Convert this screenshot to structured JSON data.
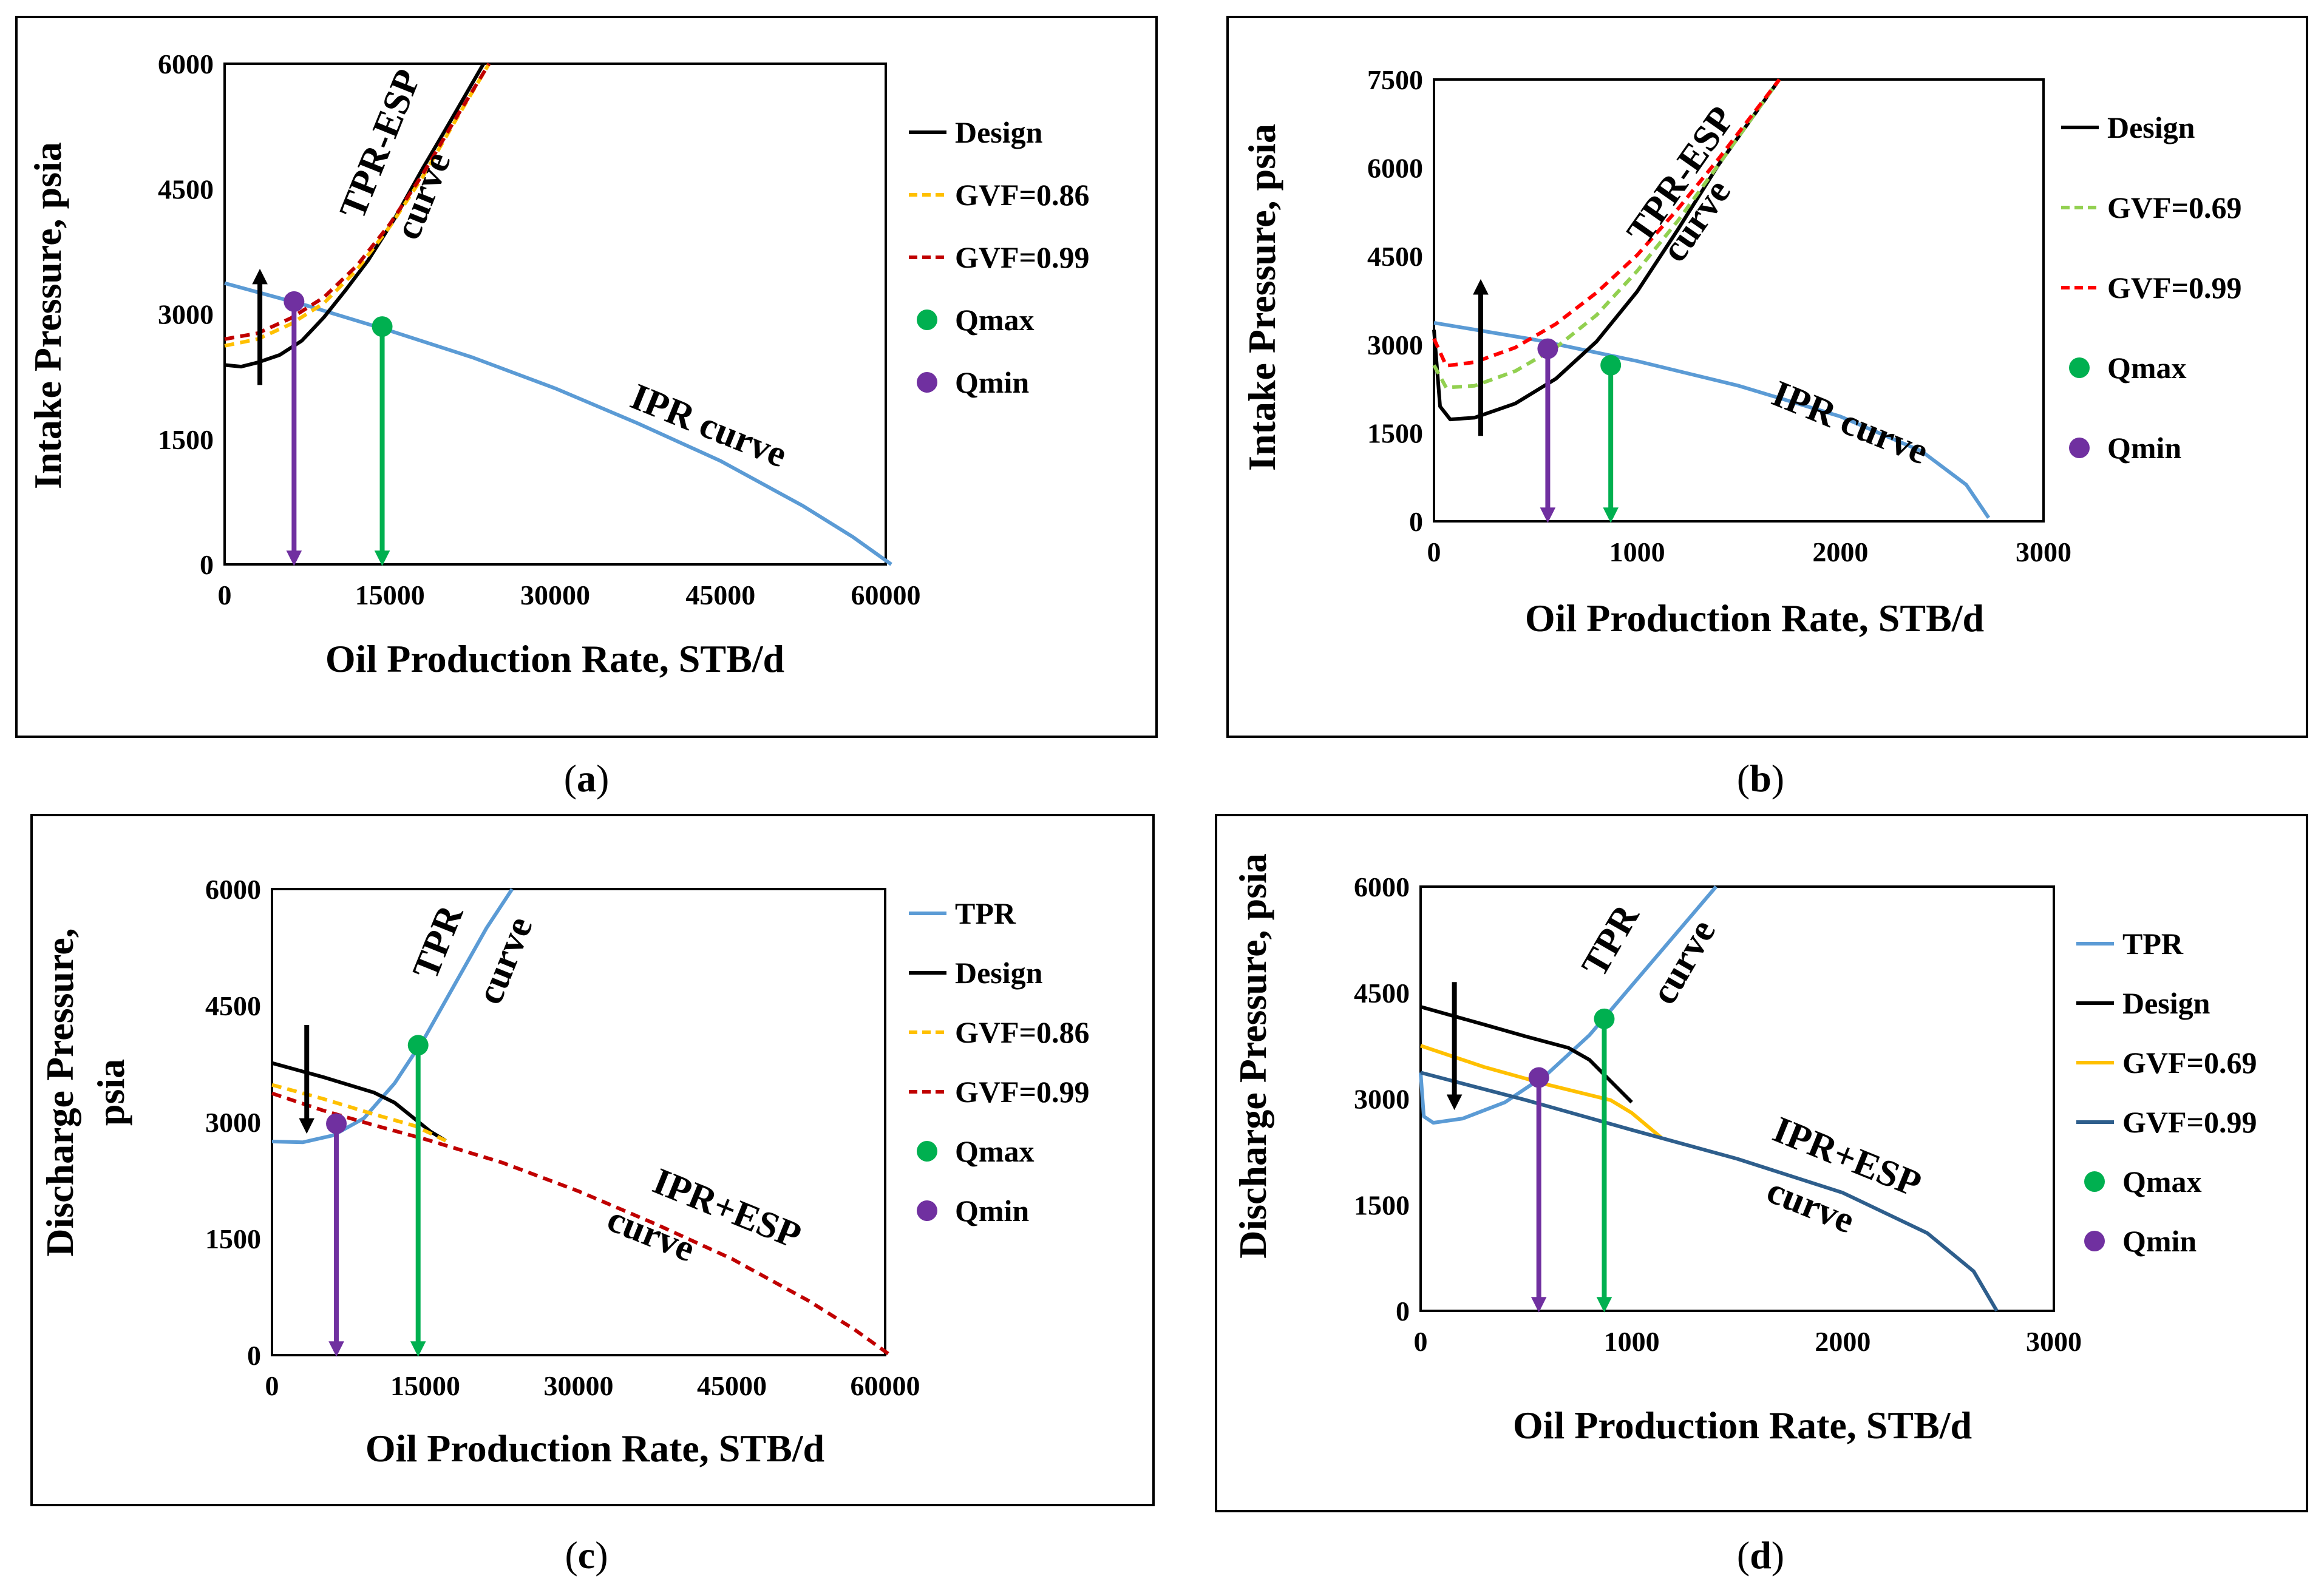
{
  "colors": {
    "design": "#000000",
    "gvf_a": "#ffc000",
    "gvf_b": "#92d050",
    "gvf_red": "#c00000",
    "gvf_red_b": "#ff0000",
    "tpr": "#5b9bd5",
    "ipr": "#5b9bd5",
    "gvf_d2": "#2e5e8c",
    "qmax": "#00b050",
    "qmin": "#7030a0"
  },
  "captions": {
    "a": {
      "open": "(",
      "letter": "a",
      "close": ")"
    },
    "b": {
      "open": "(",
      "letter": "b",
      "close": ")"
    },
    "c": {
      "open": "(",
      "letter": "c",
      "close": ")"
    },
    "d": {
      "open": "(",
      "letter": "d",
      "close": ")"
    }
  },
  "chart_data": [
    {
      "id": "a",
      "type": "line",
      "xlabel": "Oil Production Rate, STB/d",
      "ylabel": "Intake Pressure, psia",
      "xlim": [
        0,
        60000
      ],
      "ylim": [
        0,
        6000
      ],
      "xticks": [
        "0",
        "15000",
        "30000",
        "45000",
        "60000"
      ],
      "yticks": [
        "0",
        "1500",
        "3000",
        "4500",
        "6000"
      ],
      "legend": [
        "Design",
        "GVF=0.86",
        "GVF=0.99",
        "Qmax",
        "Qmin"
      ],
      "annotations": [
        "TPR-ESP",
        "curve",
        "IPR curve"
      ],
      "series": [
        {
          "name": "IPR curve",
          "x": [
            0,
            7500,
            15000,
            22500,
            30000,
            37500,
            45000,
            52500,
            57000,
            60500
          ],
          "y": [
            3370,
            3100,
            2800,
            2480,
            2110,
            1690,
            1240,
            700,
            330,
            0
          ]
        },
        {
          "name": "Design",
          "x": [
            0,
            1500,
            3000,
            5000,
            7000,
            9000,
            11000,
            13000,
            15500,
            18000,
            20000,
            23500
          ],
          "y": [
            2390,
            2370,
            2420,
            2510,
            2680,
            2960,
            3290,
            3640,
            4160,
            4750,
            5200,
            6000
          ]
        },
        {
          "name": "GVF=0.86",
          "x": [
            0,
            3000,
            6000,
            9000,
            12000,
            15000,
            18000,
            21000,
            24000
          ],
          "y": [
            2620,
            2700,
            2880,
            3130,
            3530,
            4050,
            4650,
            5330,
            6000
          ]
        },
        {
          "name": "GVF=0.99",
          "x": [
            0,
            3000,
            6000,
            9000,
            12000,
            15000,
            18000,
            21000,
            24000
          ],
          "y": [
            2700,
            2770,
            2950,
            3200,
            3580,
            4080,
            4680,
            5350,
            6000
          ]
        }
      ],
      "points": [
        {
          "name": "Qmin",
          "x": 6300,
          "y": 3150
        },
        {
          "name": "Qmax",
          "x": 14300,
          "y": 2850
        }
      ],
      "qmin_rate": 6300,
      "qmax_rate": 14300,
      "shift_arrow": {
        "x": 3200,
        "from": 2150,
        "to": 3450,
        "direction": "up"
      }
    },
    {
      "id": "b",
      "type": "line",
      "xlabel": "Oil Production Rate, STB/d",
      "ylabel": "Intake Pressure, psia",
      "xlim": [
        0,
        3000
      ],
      "ylim": [
        0,
        7500
      ],
      "xticks": [
        "0",
        "1000",
        "2000",
        "3000"
      ],
      "yticks": [
        "0",
        "1500",
        "3000",
        "4500",
        "6000",
        "7500"
      ],
      "legend": [
        "Design",
        "GVF=0.69",
        "GVF=0.99",
        "Qmax",
        "Qmin"
      ],
      "annotations": [
        "TPR-ESP",
        "curve",
        "IPR curve"
      ],
      "series": [
        {
          "name": "IPR curve",
          "x": [
            0,
            500,
            1000,
            1500,
            2000,
            2400,
            2620,
            2730
          ],
          "y": [
            3370,
            3080,
            2720,
            2300,
            1780,
            1190,
            620,
            60
          ]
        },
        {
          "name": "Design",
          "x": [
            0,
            30,
            80,
            200,
            400,
            600,
            800,
            1000,
            1200,
            1400,
            1700
          ],
          "y": [
            3250,
            1950,
            1730,
            1760,
            2000,
            2420,
            3050,
            3900,
            4950,
            6050,
            7500
          ]
        },
        {
          "name": "GVF=0.69",
          "x": [
            0,
            60,
            200,
            400,
            600,
            800,
            1000,
            1200,
            1400,
            1700
          ],
          "y": [
            2650,
            2270,
            2300,
            2550,
            2950,
            3500,
            4250,
            5100,
            6050,
            7500
          ]
        },
        {
          "name": "GVF=0.99",
          "x": [
            0,
            60,
            200,
            400,
            600,
            800,
            1000,
            1200,
            1400,
            1700
          ],
          "y": [
            3100,
            2640,
            2700,
            2950,
            3350,
            3880,
            4520,
            5300,
            6150,
            7500
          ]
        }
      ],
      "points": [
        {
          "name": "Qmin",
          "x": 560,
          "y": 2930
        },
        {
          "name": "Qmax",
          "x": 870,
          "y": 2650
        }
      ],
      "qmin_rate": 560,
      "qmax_rate": 870,
      "shift_arrow": {
        "x": 230,
        "from": 1450,
        "to": 3980,
        "direction": "up"
      }
    },
    {
      "id": "c",
      "type": "line",
      "xlabel": "Oil Production Rate, STB/d",
      "ylabel": "Discharge Pressure, psia",
      "xlim": [
        0,
        60000
      ],
      "ylim": [
        0,
        6000
      ],
      "xticks": [
        "0",
        "15000",
        "30000",
        "45000",
        "60000"
      ],
      "yticks": [
        "0",
        "1500",
        "3000",
        "4500",
        "6000"
      ],
      "legend": [
        "TPR",
        "Design",
        "GVF=0.86",
        "GVF=0.99",
        "Qmax",
        "Qmin"
      ],
      "annotations": [
        "TPR",
        "curve",
        "IPR+ESP",
        "curve"
      ],
      "series": [
        {
          "name": "TPR",
          "x": [
            0,
            3000,
            6000,
            9000,
            12000,
            15000,
            18000,
            21000,
            23500
          ],
          "y": [
            2750,
            2740,
            2830,
            3050,
            3500,
            4100,
            4800,
            5500,
            6000
          ]
        },
        {
          "name": "Design",
          "x": [
            0,
            5000,
            10000,
            12000,
            15500,
            17000
          ],
          "y": [
            3760,
            3580,
            3380,
            3250,
            2880,
            2760
          ]
        },
        {
          "name": "GVF=0.86",
          "x": [
            0,
            5000,
            10000,
            14000,
            17000
          ],
          "y": [
            3480,
            3300,
            3100,
            2950,
            2760
          ]
        },
        {
          "name": "GVF=0.99",
          "x": [
            0,
            5000,
            10000,
            15000,
            22500,
            30000,
            37500,
            45000,
            52500,
            57000,
            60500
          ],
          "y": [
            3370,
            3150,
            2960,
            2780,
            2480,
            2110,
            1690,
            1240,
            700,
            330,
            0
          ]
        }
      ],
      "points": [
        {
          "name": "Qmin",
          "x": 6300,
          "y": 2980
        },
        {
          "name": "Qmax",
          "x": 14300,
          "y": 3990
        }
      ],
      "qmin_rate": 6300,
      "qmax_rate": 14300,
      "shift_arrow": {
        "x": 3400,
        "from": 4250,
        "to": 2950,
        "direction": "down"
      }
    },
    {
      "id": "d",
      "type": "line",
      "xlabel": "Oil Production Rate, STB/d",
      "ylabel": "Discharge Pressure, psia",
      "xlim": [
        0,
        3000
      ],
      "ylim": [
        0,
        6000
      ],
      "xticks": [
        "0",
        "1000",
        "2000",
        "3000"
      ],
      "yticks": [
        "0",
        "1500",
        "3000",
        "4500",
        "6000"
      ],
      "legend": [
        "TPR",
        "Design",
        "GVF=0.69",
        "GVF=0.99",
        "Qmax",
        "Qmin"
      ],
      "annotations": [
        "TPR",
        "curve",
        "IPR+ESP",
        "curve"
      ],
      "series": [
        {
          "name": "TPR",
          "x": [
            0,
            15,
            60,
            200,
            400,
            600,
            800,
            1000,
            1200,
            1400
          ],
          "y": [
            3370,
            2750,
            2660,
            2720,
            2950,
            3350,
            3900,
            4600,
            5300,
            6000
          ]
        },
        {
          "name": "Design",
          "x": [
            0,
            300,
            500,
            700,
            800,
            900,
            1000
          ],
          "y": [
            4300,
            4050,
            3880,
            3720,
            3550,
            3250,
            2950
          ]
        },
        {
          "name": "GVF=0.69",
          "x": [
            0,
            300,
            600,
            900,
            1000,
            1140
          ],
          "y": [
            3750,
            3450,
            3200,
            2980,
            2800,
            2450
          ]
        },
        {
          "name": "GVF=0.99",
          "x": [
            0,
            500,
            1000,
            1500,
            2000,
            2400,
            2620,
            2730
          ],
          "y": [
            3370,
            2980,
            2560,
            2150,
            1670,
            1100,
            560,
            0
          ]
        }
      ],
      "points": [
        {
          "name": "Qmin",
          "x": 560,
          "y": 3300
        },
        {
          "name": "Qmax",
          "x": 870,
          "y": 4130
        }
      ],
      "qmin_rate": 560,
      "qmax_rate": 870,
      "shift_arrow": {
        "x": 160,
        "from": 4650,
        "to": 2950,
        "direction": "down"
      }
    }
  ]
}
